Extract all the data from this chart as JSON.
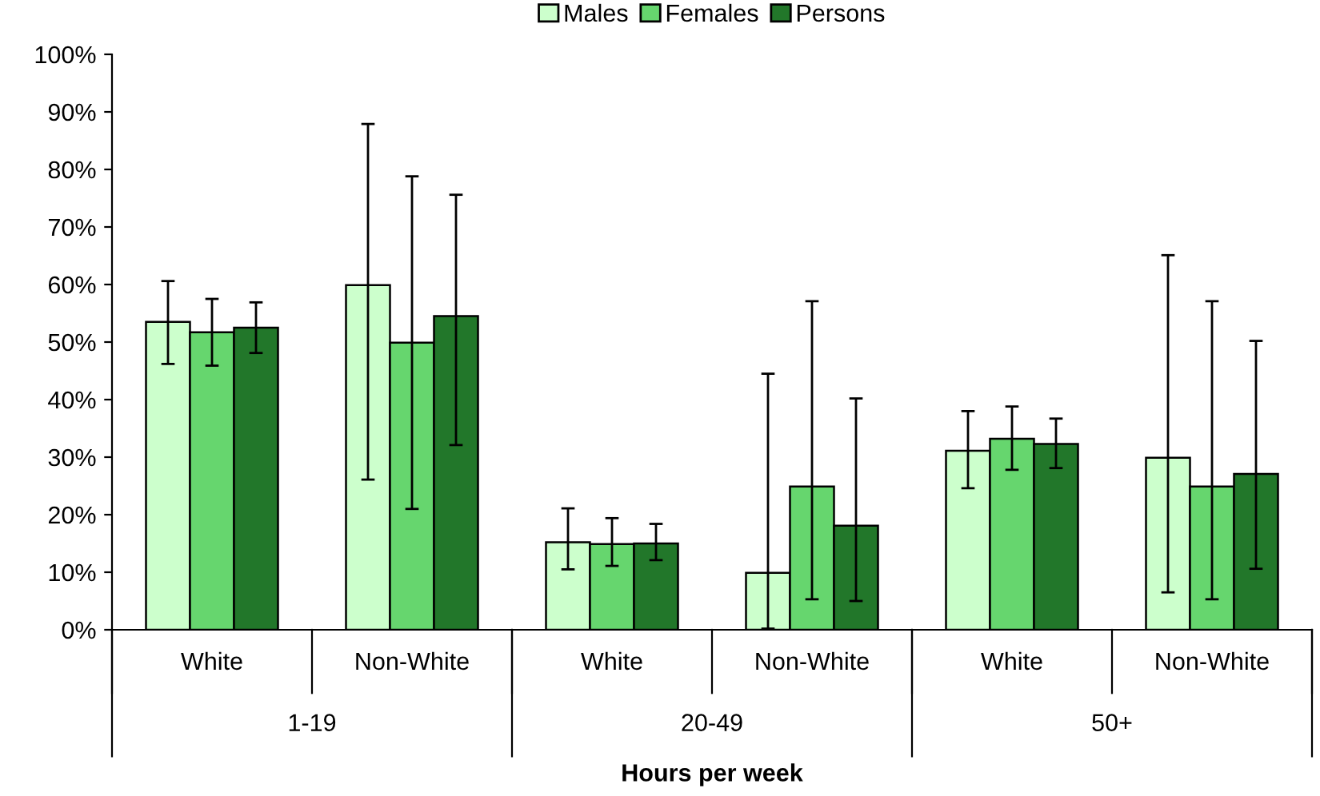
{
  "chart_data": {
    "type": "bar",
    "xlabel": "Hours per week",
    "categories": [
      "White",
      "Non-White",
      "White",
      "Non-White",
      "White",
      "Non-White"
    ],
    "annotations": [
      "1-19",
      "20-49",
      "50+"
    ],
    "series": [
      {
        "name": "Males",
        "color": "#ccffcc",
        "values": [
          53.5,
          59.9,
          15.2,
          9.9,
          31.1,
          29.9
        ],
        "errors": [
          [
            46.2,
            60.6
          ],
          [
            26.1,
            87.9
          ],
          [
            10.5,
            21.1
          ],
          [
            0.2,
            44.5
          ],
          [
            24.6,
            38.0
          ],
          [
            6.5,
            65.1
          ]
        ]
      },
      {
        "name": "Females",
        "color": "#66d66e",
        "values": [
          51.7,
          49.9,
          14.9,
          24.9,
          33.2,
          24.9
        ],
        "errors": [
          [
            45.9,
            57.5
          ],
          [
            21.0,
            78.8
          ],
          [
            11.1,
            19.4
          ],
          [
            5.3,
            57.1
          ],
          [
            27.8,
            38.8
          ],
          [
            5.3,
            57.1
          ]
        ]
      },
      {
        "name": "Persons",
        "color": "#22772a",
        "values": [
          52.5,
          54.5,
          15.0,
          18.1,
          32.3,
          27.1
        ],
        "errors": [
          [
            48.1,
            56.9
          ],
          [
            32.1,
            75.6
          ],
          [
            12.1,
            18.4
          ],
          [
            5.0,
            40.2
          ],
          [
            28.1,
            36.7
          ],
          [
            10.6,
            50.2
          ]
        ]
      }
    ],
    "ylim": [
      0,
      100
    ],
    "yticks": [
      {
        "value": 0,
        "label": "0%"
      },
      {
        "value": 10,
        "label": "10%"
      },
      {
        "value": 20,
        "label": "20%"
      },
      {
        "value": 30,
        "label": "30%"
      },
      {
        "value": 40,
        "label": "40%"
      },
      {
        "value": 50,
        "label": "50%"
      },
      {
        "value": 60,
        "label": "60%"
      },
      {
        "value": 70,
        "label": "70%"
      },
      {
        "value": 80,
        "label": "80%"
      },
      {
        "value": 90,
        "label": "90%"
      },
      {
        "value": 100,
        "label": "100%"
      }
    ],
    "grid": false,
    "legend": "top"
  }
}
